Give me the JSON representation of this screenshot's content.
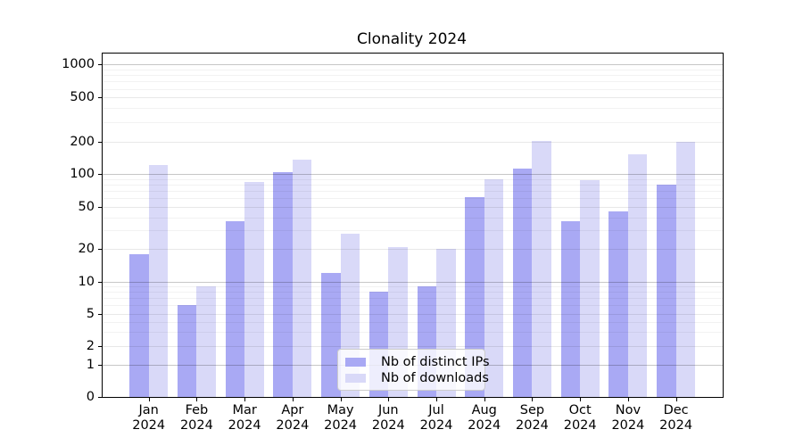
{
  "title": "Clonality 2024",
  "chart_data": {
    "type": "bar",
    "title": "Clonality 2024",
    "categories": [
      "Jan 2024",
      "Feb 2024",
      "Mar 2024",
      "Apr 2024",
      "May 2024",
      "Jun 2024",
      "Jul 2024",
      "Aug 2024",
      "Sep 2024",
      "Oct 2024",
      "Nov 2024",
      "Dec 2024"
    ],
    "series": [
      {
        "name": "Nb of distinct IPs",
        "color": "#a9a9f4",
        "values": [
          18,
          6,
          37,
          105,
          12,
          8,
          9,
          62,
          113,
          37,
          45,
          80
        ]
      },
      {
        "name": "Nb of downloads",
        "color": "#d9d9f8",
        "values": [
          121,
          9,
          85,
          137,
          28,
          21,
          20,
          90,
          204,
          88,
          152,
          201
        ]
      }
    ],
    "yscale": "symlog",
    "yticks": [
      0,
      1,
      2,
      5,
      10,
      20,
      50,
      100,
      200,
      500,
      1000
    ],
    "grid": true,
    "legend_position": "lower center",
    "axis_color": "#000000",
    "major_grid_values": [
      1,
      10,
      100,
      1000
    ],
    "medium_grid_values": [
      2,
      5,
      20,
      50,
      200,
      500
    ],
    "minor_grid_values": [
      3,
      4,
      6,
      7,
      8,
      9,
      30,
      40,
      60,
      70,
      80,
      90,
      300,
      400,
      600,
      700,
      800,
      900
    ]
  }
}
